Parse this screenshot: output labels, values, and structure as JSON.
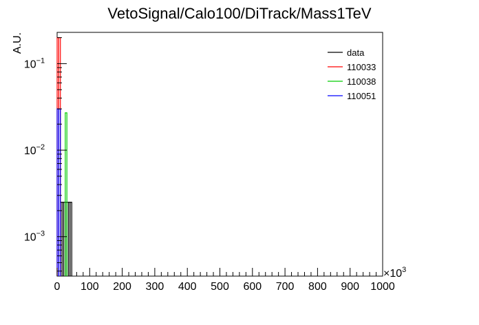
{
  "chart_data": {
    "type": "line",
    "title": "VetoSignal/Calo100/DiTrack/Mass1TeV",
    "xlabel": "",
    "ylabel": "A.U.",
    "x_multiplier_label": "×10",
    "x_multiplier_exponent": "3",
    "xlim": [
      0,
      1000
    ],
    "ylim": [
      0.00035,
      0.23
    ],
    "yscale": "log",
    "x_ticks": [
      0,
      100,
      200,
      300,
      400,
      500,
      600,
      700,
      800,
      900,
      1000
    ],
    "x_tick_labels": [
      "0",
      "100",
      "200",
      "300",
      "400",
      "500",
      "600",
      "700",
      "800",
      "900",
      "1000"
    ],
    "y_ticks": [
      0.001,
      0.01,
      0.1
    ],
    "y_tick_labels": [
      {
        "base": "10",
        "exp": "−3"
      },
      {
        "base": "10",
        "exp": "−2"
      },
      {
        "base": "10",
        "exp": "−1"
      }
    ],
    "grid": false,
    "legend_position": "top-right",
    "series": [
      {
        "name": "data",
        "color": "#000000",
        "x": [
          5,
          10,
          15,
          20,
          25,
          30,
          35,
          40
        ],
        "values": [
          0.03,
          0.0025,
          0.0025,
          0.0025,
          0.0025,
          0.0025,
          0.0025,
          0.0025
        ]
      },
      {
        "name": "110033",
        "color": "#ff0000",
        "x": [
          0,
          5
        ],
        "values": [
          0.2,
          0.2
        ]
      },
      {
        "name": "110038",
        "color": "#00cc00",
        "x": [
          25
        ],
        "values": [
          0.027
        ]
      },
      {
        "name": "110051",
        "color": "#0000ff",
        "x": [
          0,
          5
        ],
        "values": [
          0.03,
          0.03
        ]
      }
    ]
  }
}
